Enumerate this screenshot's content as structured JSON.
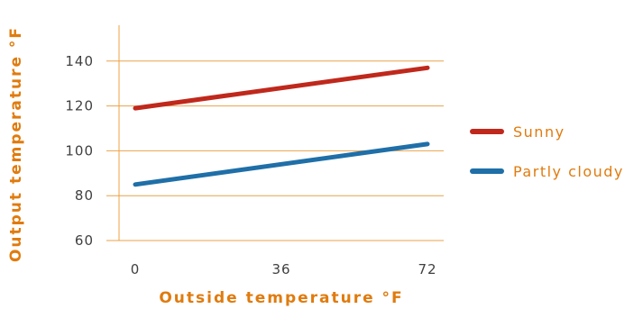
{
  "chart_data": {
    "type": "line",
    "xlabel": "Outside temperature °F",
    "ylabel": "Output temperature °F",
    "x": [
      0,
      72
    ],
    "x_ticks": [
      "0",
      "36",
      "72"
    ],
    "y_ticks": [
      "60",
      "80",
      "100",
      "120",
      "140"
    ],
    "ylim": [
      60,
      160
    ],
    "xlim": [
      -4,
      76
    ],
    "grid": "horizontal",
    "legend_position": "right",
    "series": [
      {
        "name": "Sunny",
        "values": [
          119,
          137
        ],
        "color": "#c0281c"
      },
      {
        "name": "Partly cloudy",
        "values": [
          85,
          103
        ],
        "color": "#1f6fa8"
      }
    ],
    "colors": {
      "accent": "#e07b0e",
      "grid": "#e8a24a",
      "axis": "#f0a040",
      "tick_text": "#404040"
    }
  }
}
